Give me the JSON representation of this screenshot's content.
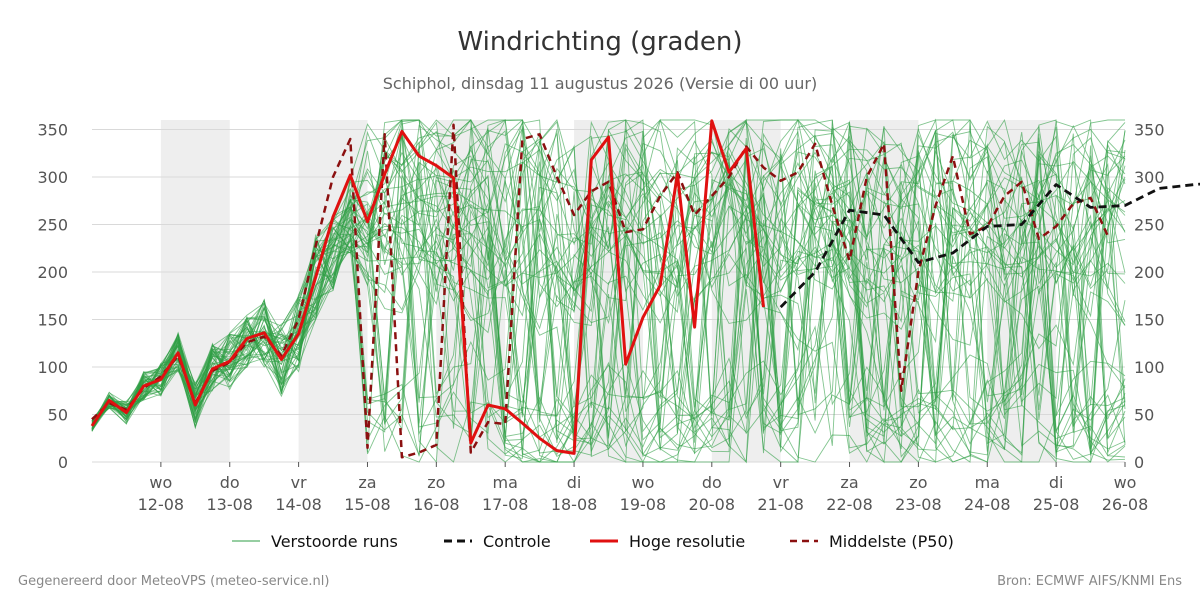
{
  "title": "Windrichting (graden)",
  "subtitle": "Schiphol, dinsdag 11 augustus 2026 (Versie di 00 uur)",
  "footer_left": "Gegenereerd door MeteoVPS (meteo-service.nl)",
  "footer_right": "Bron: ECMWF AIFS/KNMI Ens",
  "chart_data": {
    "type": "line",
    "title": "Windrichting (graden)",
    "ylim": [
      0,
      360
    ],
    "yticks": [
      0,
      50,
      100,
      150,
      200,
      250,
      300,
      350
    ],
    "xlim": [
      0,
      15
    ],
    "x_unit": "dagen vanaf 11-08 00 uur",
    "grid": "horizontal",
    "legend_position": "bottom",
    "day_ticks": [
      {
        "x": 1,
        "day": "wo",
        "date": "12-08"
      },
      {
        "x": 2,
        "day": "do",
        "date": "13-08"
      },
      {
        "x": 3,
        "day": "vr",
        "date": "14-08"
      },
      {
        "x": 4,
        "day": "za",
        "date": "15-08"
      },
      {
        "x": 5,
        "day": "zo",
        "date": "16-08"
      },
      {
        "x": 6,
        "day": "ma",
        "date": "17-08"
      },
      {
        "x": 7,
        "day": "di",
        "date": "18-08"
      },
      {
        "x": 8,
        "day": "wo",
        "date": "19-08"
      },
      {
        "x": 9,
        "day": "do",
        "date": "20-08"
      },
      {
        "x": 10,
        "day": "vr",
        "date": "21-08"
      },
      {
        "x": 11,
        "day": "za",
        "date": "22-08"
      },
      {
        "x": 12,
        "day": "zo",
        "date": "23-08"
      },
      {
        "x": 13,
        "day": "ma",
        "date": "24-08"
      },
      {
        "x": 14,
        "day": "di",
        "date": "25-08"
      },
      {
        "x": 15,
        "day": "wo",
        "date": "26-08"
      }
    ],
    "shaded_periods": [
      [
        1,
        2
      ],
      [
        3,
        4
      ],
      [
        5,
        6
      ],
      [
        7,
        8
      ],
      [
        9,
        10
      ],
      [
        11,
        12
      ],
      [
        13,
        14
      ]
    ],
    "legend": [
      {
        "key": "ensemble",
        "label": "Verstoorde runs"
      },
      {
        "key": "control",
        "label": "Controle"
      },
      {
        "key": "hires",
        "label": "Hoge resolutie"
      },
      {
        "key": "median",
        "label": "Middelste (P50)"
      }
    ],
    "colors": {
      "ensemble": "#2e9e44",
      "control": "#111111",
      "hires": "#e01010",
      "median": "#8b1010",
      "shade": "#eeeeee",
      "grid": "#d9d9d9"
    },
    "ensemble": {
      "members": 50,
      "base_interval_days": 0.25,
      "envelope_note": "verstoorde runs spreiden na 15-08 over 0-360 graden"
    },
    "series": [
      {
        "name": "Hoge resolutie",
        "key": "hires",
        "interval_days": 0.25,
        "values": [
          38,
          65,
          52,
          80,
          87,
          115,
          60,
          98,
          106,
          130,
          136,
          108,
          135,
          195,
          258,
          302,
          253,
          303,
          348,
          322,
          312,
          299,
          20,
          60,
          56,
          41,
          25,
          12,
          9,
          318,
          342,
          103,
          152,
          186,
          303,
          142,
          359,
          305,
          330,
          163
        ]
      },
      {
        "name": "Controle",
        "key": "control",
        "interval_days": 0.5,
        "start_x": 10,
        "values": [
          163,
          200,
          265,
          260,
          210,
          220,
          248,
          250,
          292,
          268,
          270,
          288,
          292,
          295,
          288,
          320,
          315,
          322,
          315,
          312,
          302
        ]
      },
      {
        "name": "Middelste (P50)",
        "key": "median",
        "interval_days": 0.25,
        "values": [
          45,
          62,
          55,
          78,
          90,
          112,
          62,
          96,
          105,
          126,
          132,
          112,
          150,
          228,
          300,
          340,
          15,
          345,
          5,
          10,
          18,
          355,
          10,
          42,
          40,
          340,
          345,
          300,
          260,
          285,
          295,
          242,
          245,
          280,
          305,
          260,
          280,
          300,
          332,
          310,
          296,
          305,
          335,
          270,
          212,
          300,
          335,
          75,
          200,
          270,
          322,
          240,
          248,
          280,
          295,
          235,
          248,
          272,
          278,
          238
        ]
      }
    ]
  }
}
